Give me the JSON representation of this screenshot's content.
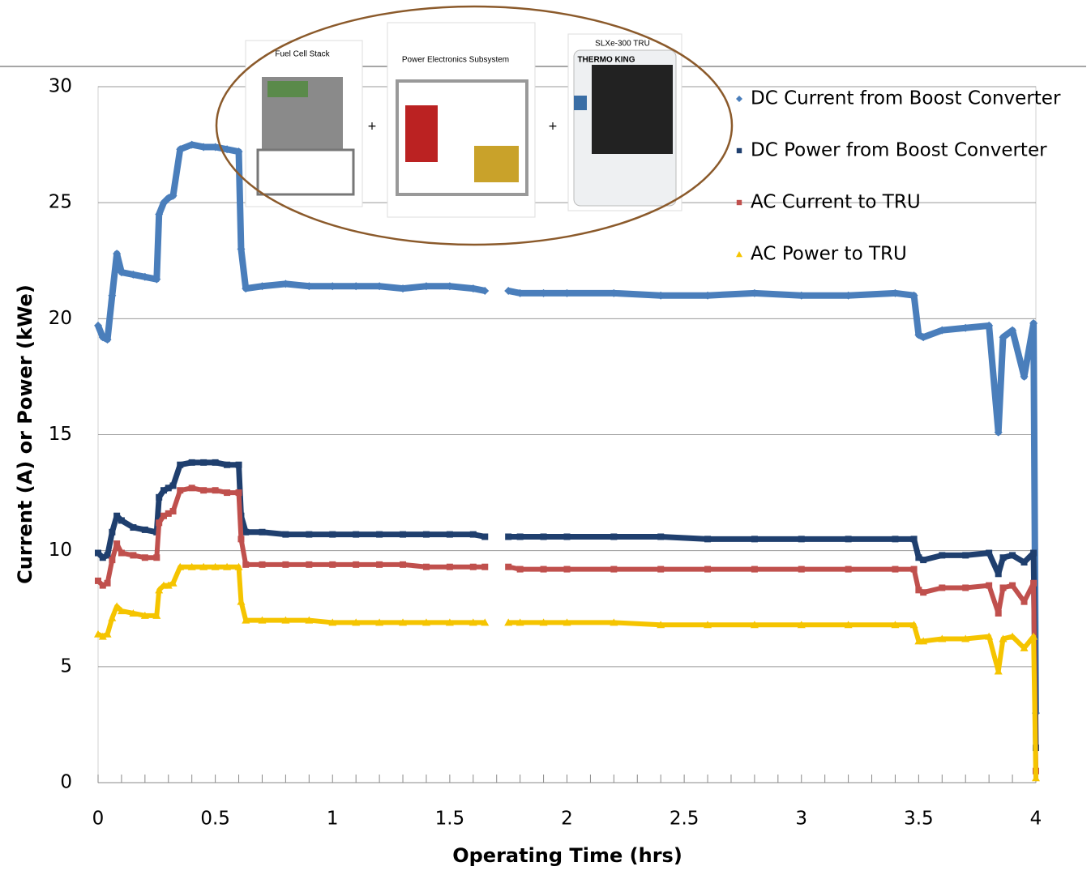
{
  "chart_data": {
    "type": "scatter",
    "x_label": "Operating Time (hrs)",
    "y_label": "Current (A) or Power (kWe)",
    "annotations": [
      "Fuel Cell Stack",
      "Power Electronics Subsystem",
      "SLXe-300 TRU",
      "THERMO KING",
      "+",
      "+"
    ],
    "x": [
      0,
      0.02,
      0.04,
      0.06,
      0.08,
      0.1,
      0.15,
      0.2,
      0.25,
      0.26,
      0.28,
      0.3,
      0.32,
      0.35,
      0.4,
      0.45,
      0.5,
      0.55,
      0.6,
      0.61,
      0.63,
      0.7,
      0.8,
      0.9,
      1.0,
      1.1,
      1.2,
      1.3,
      1.4,
      1.5,
      1.6,
      1.65,
      1.7,
      1.75,
      1.8,
      1.9,
      2.0,
      2.2,
      2.4,
      2.6,
      2.8,
      3.0,
      3.2,
      3.4,
      3.48,
      3.5,
      3.52,
      3.6,
      3.7,
      3.8,
      3.84,
      3.86,
      3.9,
      3.95,
      3.99,
      4.0
    ],
    "series": [
      {
        "name": "DC Current from Boost Converter",
        "color": "#4a7ebb",
        "marker": "diamond",
        "values": [
          19.7,
          19.2,
          19.1,
          21,
          22.8,
          22,
          21.9,
          21.8,
          21.7,
          24.5,
          25,
          25.2,
          25.3,
          27.3,
          27.5,
          27.4,
          27.4,
          27.3,
          27.2,
          23,
          21.3,
          21.4,
          21.5,
          21.4,
          21.4,
          21.4,
          21.4,
          21.3,
          21.4,
          21.4,
          21.3,
          21.2,
          null,
          21.2,
          21.1,
          21.1,
          21.1,
          21.1,
          21.0,
          21.0,
          21.1,
          21.0,
          21.0,
          21.1,
          21.0,
          19.3,
          19.2,
          19.5,
          19.6,
          19.7,
          15.1,
          19.2,
          19.5,
          17.5,
          19.8,
          3.0
        ]
      },
      {
        "name": "DC Power from Boost Converter",
        "color": "#1f3f6e",
        "marker": "square",
        "values": [
          9.9,
          9.7,
          9.8,
          10.8,
          11.5,
          11.3,
          11.0,
          10.9,
          10.8,
          12.3,
          12.6,
          12.7,
          12.8,
          13.7,
          13.8,
          13.8,
          13.8,
          13.7,
          13.7,
          11.5,
          10.8,
          10.8,
          10.7,
          10.7,
          10.7,
          10.7,
          10.7,
          10.7,
          10.7,
          10.7,
          10.7,
          10.6,
          null,
          10.6,
          10.6,
          10.6,
          10.6,
          10.6,
          10.6,
          10.5,
          10.5,
          10.5,
          10.5,
          10.5,
          10.5,
          9.7,
          9.6,
          9.8,
          9.8,
          9.9,
          9.0,
          9.7,
          9.8,
          9.5,
          9.9,
          1.5
        ]
      },
      {
        "name": "AC Current to TRU",
        "color": "#c0504d",
        "marker": "square",
        "values": [
          8.7,
          8.5,
          8.6,
          9.6,
          10.3,
          9.9,
          9.8,
          9.7,
          9.7,
          11.2,
          11.5,
          11.6,
          11.7,
          12.6,
          12.7,
          12.6,
          12.6,
          12.5,
          12.5,
          10.5,
          9.4,
          9.4,
          9.4,
          9.4,
          9.4,
          9.4,
          9.4,
          9.4,
          9.3,
          9.3,
          9.3,
          9.3,
          null,
          9.3,
          9.2,
          9.2,
          9.2,
          9.2,
          9.2,
          9.2,
          9.2,
          9.2,
          9.2,
          9.2,
          9.2,
          8.3,
          8.2,
          8.4,
          8.4,
          8.5,
          7.3,
          8.4,
          8.5,
          7.8,
          8.6,
          0.5
        ]
      },
      {
        "name": "AC Power to TRU",
        "color": "#f5c400",
        "marker": "triangle",
        "values": [
          6.4,
          6.3,
          6.4,
          7.1,
          7.6,
          7.4,
          7.3,
          7.2,
          7.2,
          8.3,
          8.5,
          8.5,
          8.6,
          9.3,
          9.3,
          9.3,
          9.3,
          9.3,
          9.3,
          7.8,
          7.0,
          7.0,
          7.0,
          7.0,
          6.9,
          6.9,
          6.9,
          6.9,
          6.9,
          6.9,
          6.9,
          6.9,
          null,
          6.9,
          6.9,
          6.9,
          6.9,
          6.9,
          6.8,
          6.8,
          6.8,
          6.8,
          6.8,
          6.8,
          6.8,
          6.1,
          6.1,
          6.2,
          6.2,
          6.3,
          4.8,
          6.2,
          6.3,
          5.8,
          6.3,
          0.2
        ]
      }
    ],
    "xlim": [
      0,
      4
    ],
    "xticks": [
      0,
      0.5,
      1,
      1.5,
      2,
      2.5,
      3,
      3.5,
      4
    ],
    "ylim": [
      0,
      30
    ],
    "yticks": [
      0,
      5,
      10,
      15,
      20,
      25,
      30
    ],
    "grid": true,
    "legend": "upper right"
  }
}
